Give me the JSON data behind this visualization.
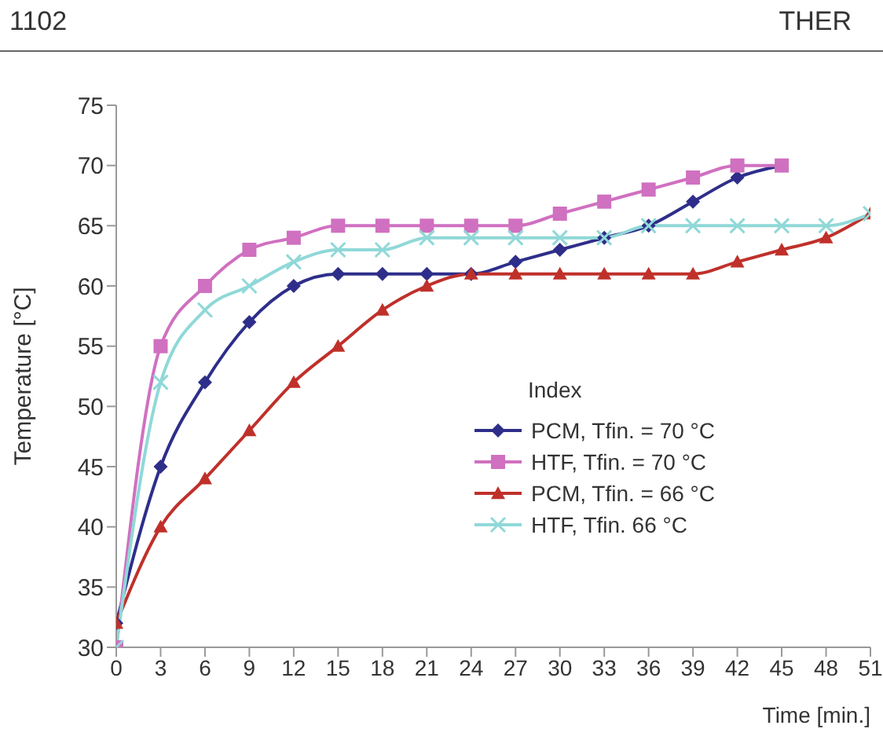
{
  "chart_data": {
    "type": "line",
    "xlabel": "Time [min.]",
    "ylabel": "Temperature [°C]",
    "legend_title": "Index",
    "annotations": [
      "1102",
      "THER"
    ],
    "x": [
      0,
      3,
      6,
      9,
      12,
      15,
      18,
      21,
      24,
      27,
      30,
      33,
      36,
      39,
      42,
      45,
      48,
      51
    ],
    "series": [
      {
        "name": "PCM, Tfin. = 70 °C",
        "color": "#2e2e8a",
        "marker": "diamond",
        "values": [
          32,
          45,
          52,
          57,
          60,
          61,
          61,
          61,
          61,
          62,
          63,
          64,
          65,
          67,
          69,
          70,
          null,
          null
        ]
      },
      {
        "name": "HTF, Tfin. = 70 °C",
        "color": "#d070c0",
        "marker": "square",
        "values": [
          30,
          55,
          60,
          63,
          64,
          65,
          65,
          65,
          65,
          65,
          66,
          67,
          68,
          69,
          70,
          70,
          null,
          null
        ]
      },
      {
        "name": "PCM, Tfin. = 66 °C",
        "color": "#c0302a",
        "marker": "triangle",
        "values": [
          32,
          40,
          44,
          48,
          52,
          55,
          58,
          60,
          61,
          61,
          61,
          61,
          61,
          61,
          62,
          63,
          64,
          66
        ]
      },
      {
        "name": "HTF, Tfin. 66 °C",
        "color": "#90d8d8",
        "marker": "cross",
        "values": [
          30,
          52,
          58,
          60,
          62,
          63,
          63,
          64,
          64,
          64,
          64,
          64,
          65,
          65,
          65,
          65,
          65,
          66
        ]
      }
    ],
    "xlim": [
      0,
      51
    ],
    "xticks": [
      0,
      3,
      6,
      9,
      12,
      15,
      18,
      21,
      24,
      27,
      30,
      33,
      36,
      39,
      42,
      45,
      48,
      51
    ],
    "ylim": [
      30,
      75
    ],
    "yticks": [
      30,
      35,
      40,
      45,
      50,
      55,
      60,
      65,
      70,
      75
    ],
    "grid": false,
    "legend": "bottom right"
  }
}
